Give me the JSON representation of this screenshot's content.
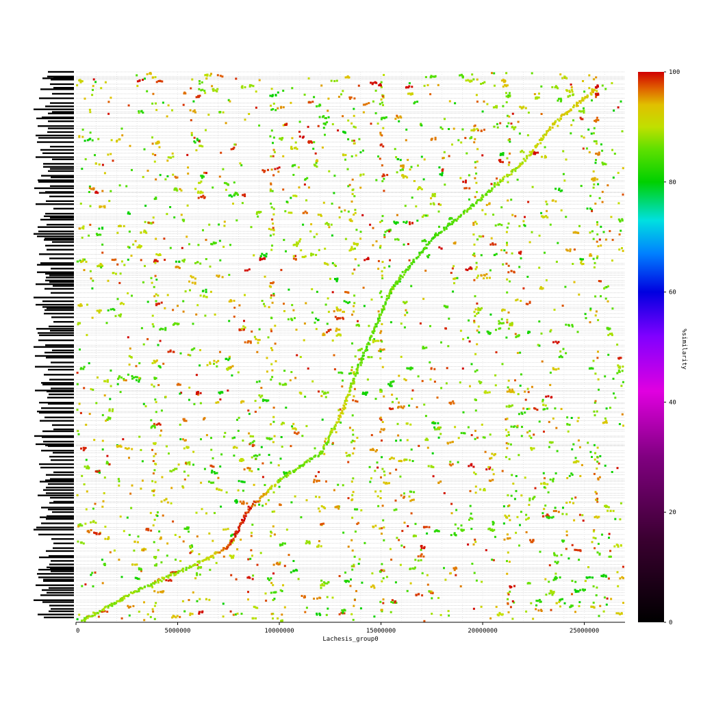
{
  "chart_data": {
    "type": "scatter",
    "title": "",
    "xlabel": "Lachesis_group0",
    "ylabel": "",
    "xlim": [
      0,
      27000000
    ],
    "x_ticks": [
      0,
      5000000,
      10000000,
      15000000,
      20000000,
      25000000
    ],
    "x_tick_labels": [
      "0",
      "5000000",
      "10000000",
      "15000000",
      "20000000",
      "25000000"
    ],
    "y_contig_label_count": 180,
    "grid": true,
    "colorbar": {
      "label": "%similarity",
      "min": 0,
      "max": 100,
      "ticks": [
        0,
        20,
        40,
        60,
        80,
        100
      ],
      "tick_labels": [
        "0",
        "20",
        "40",
        "60",
        "80",
        "100"
      ],
      "colors": [
        {
          "value": 0,
          "color": "#000000"
        },
        {
          "value": 15,
          "color": "#3a0030"
        },
        {
          "value": 30,
          "color": "#800080"
        },
        {
          "value": 42,
          "color": "#e000e0"
        },
        {
          "value": 52,
          "color": "#8000ff"
        },
        {
          "value": 60,
          "color": "#0000e0"
        },
        {
          "value": 67,
          "color": "#0080ff"
        },
        {
          "value": 73,
          "color": "#00e0e0"
        },
        {
          "value": 80,
          "color": "#00d000"
        },
        {
          "value": 86,
          "color": "#60e000"
        },
        {
          "value": 90,
          "color": "#c0e000"
        },
        {
          "value": 94,
          "color": "#e0c000"
        },
        {
          "value": 97,
          "color": "#e06000"
        },
        {
          "value": 100,
          "color": "#d00000"
        }
      ]
    },
    "diagonal_trend": [
      {
        "x": 0,
        "y_frac": 0.0,
        "sim": 88
      },
      {
        "x": 3000000,
        "y_frac": 0.06,
        "sim": 88
      },
      {
        "x": 6000000,
        "y_frac": 0.11,
        "sim": 88
      },
      {
        "x": 7500000,
        "y_frac": 0.14,
        "sim": 99
      },
      {
        "x": 8500000,
        "y_frac": 0.21,
        "sim": 99
      },
      {
        "x": 10000000,
        "y_frac": 0.26,
        "sim": 88
      },
      {
        "x": 12000000,
        "y_frac": 0.31,
        "sim": 86
      },
      {
        "x": 13000000,
        "y_frac": 0.38,
        "sim": 92
      },
      {
        "x": 14000000,
        "y_frac": 0.48,
        "sim": 85
      },
      {
        "x": 15500000,
        "y_frac": 0.61,
        "sim": 86
      },
      {
        "x": 17500000,
        "y_frac": 0.7,
        "sim": 84
      },
      {
        "x": 19500000,
        "y_frac": 0.76,
        "sim": 86
      },
      {
        "x": 22000000,
        "y_frac": 0.84,
        "sim": 90
      },
      {
        "x": 23500000,
        "y_frac": 0.91,
        "sim": 92
      },
      {
        "x": 25500000,
        "y_frac": 0.97,
        "sim": 93
      }
    ],
    "background_points_count": 1900
  }
}
